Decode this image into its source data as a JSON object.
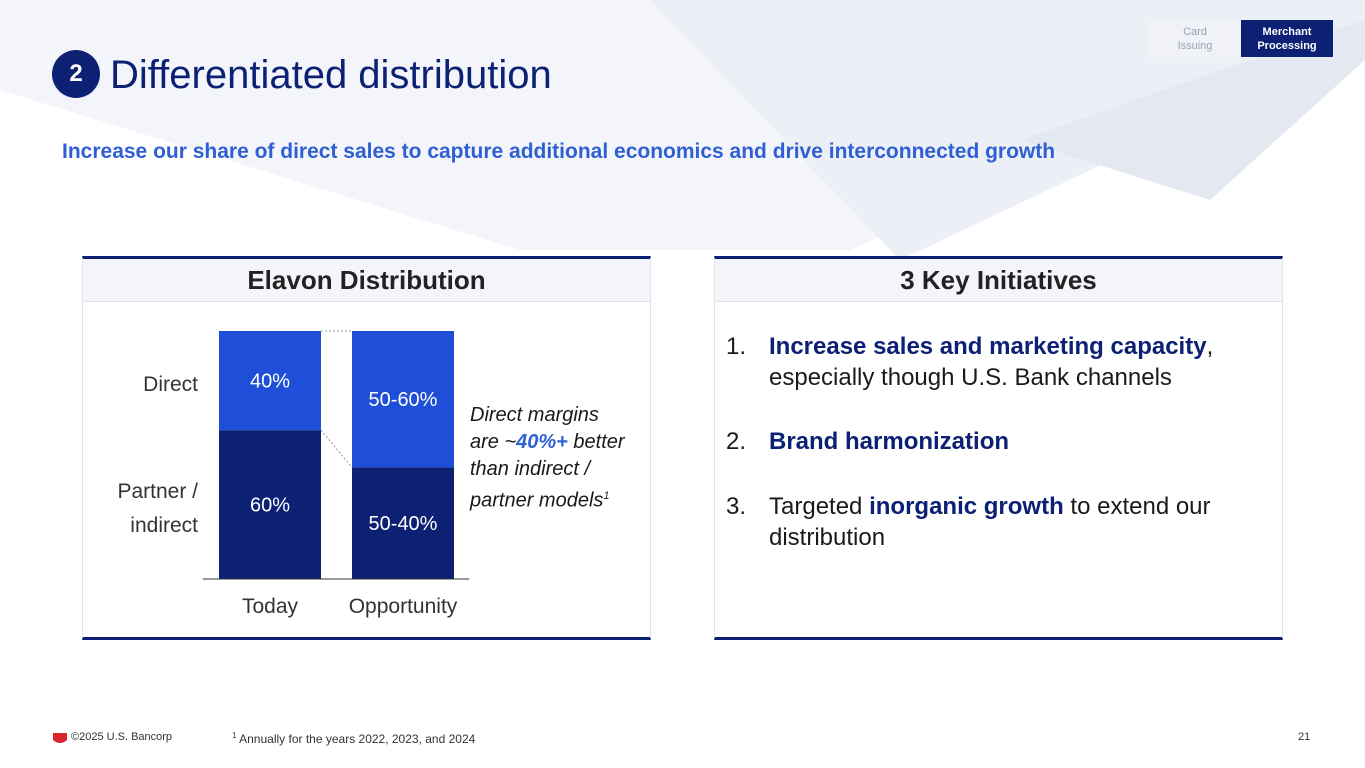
{
  "header": {
    "badge_number": "2",
    "title": "Differentiated distribution",
    "subtitle": "Increase our share of direct sales to capture additional economics and drive interconnected growth"
  },
  "segments": {
    "card_line1": "Card",
    "card_line2": "Issuing",
    "merchant_line1": "Merchant",
    "merchant_line2": "Processing"
  },
  "left_panel": {
    "title": "Elavon Distribution",
    "note": {
      "line1": "Direct margins",
      "line2_pre": "are ~",
      "line2_highlight": "40%+",
      "line2_post": " better",
      "line3": "than indirect /",
      "line4": "partner models",
      "footnote_marker": "1"
    }
  },
  "chart_data": {
    "type": "bar",
    "stacked": true,
    "categories": [
      "Today",
      "Opportunity"
    ],
    "row_labels": [
      "Direct",
      "Partner /",
      "indirect"
    ],
    "series": [
      {
        "name": "Partner / indirect",
        "values": [
          60,
          45
        ],
        "labels": [
          "60%",
          "50-40%"
        ],
        "color": "#0c2074"
      },
      {
        "name": "Direct",
        "values": [
          40,
          55
        ],
        "labels": [
          "40%",
          "50-60%"
        ],
        "color": "#1f4fd8"
      }
    ],
    "ylim": [
      0,
      100
    ]
  },
  "right_panel": {
    "title": "3 Key Initiatives",
    "items": [
      {
        "num": "1.",
        "bold": "Increase sales and marketing capacity",
        "after": ",",
        "line2": "especially though U.S. Bank channels"
      },
      {
        "num": "2.",
        "bold": "Brand harmonization"
      },
      {
        "num": "3.",
        "pre": "Targeted ",
        "bold": "inorganic growth",
        "after": " to extend our",
        "line2": "distribution"
      }
    ]
  },
  "footer": {
    "copyright": "©2025 U.S. Bancorp",
    "footnote_marker": "1",
    "footnote": " Annually for the years 2022, 2023, and 2024",
    "page": "21"
  },
  "colors": {
    "navy": "#0c2074",
    "blue": "#1f4fd8",
    "accent": "#2f5fd4",
    "shield": "#d6262e"
  }
}
